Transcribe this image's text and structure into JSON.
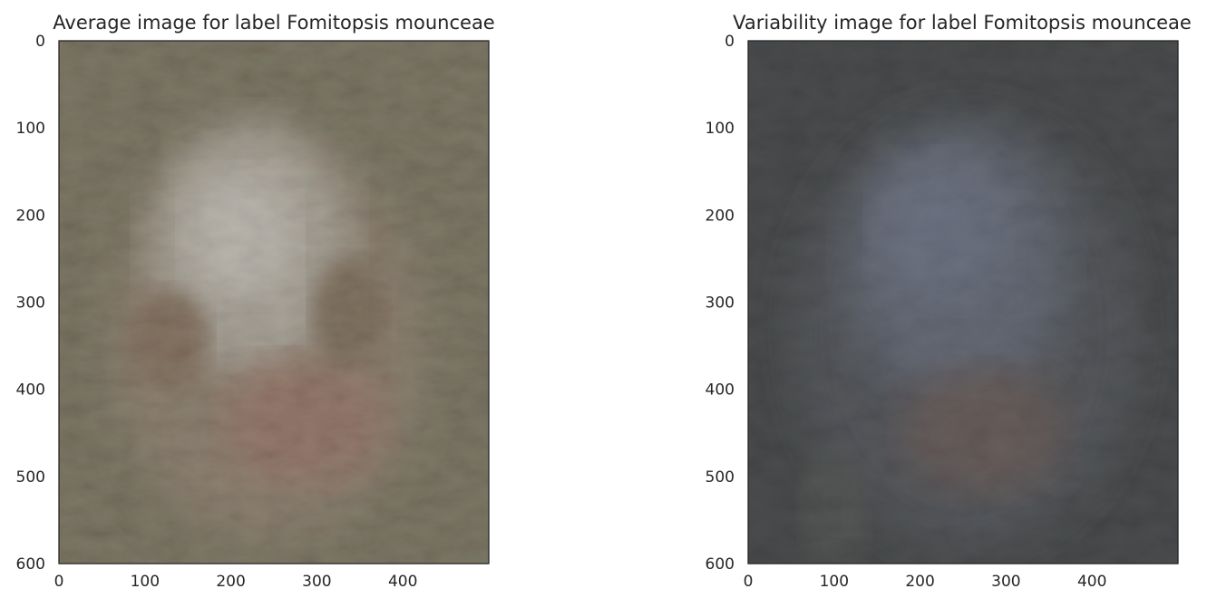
{
  "chart_data": [
    {
      "type": "heatmap",
      "title": "Average image for label Fomitopsis mounceae",
      "xlabel": "",
      "ylabel": "",
      "xlim": [
        0,
        500
      ],
      "ylim": [
        600,
        0
      ],
      "xticks": [
        0,
        100,
        200,
        300,
        400
      ],
      "yticks": [
        0,
        100,
        200,
        300,
        400,
        500,
        600
      ],
      "grid": false,
      "colors": {
        "background": "#6b6552",
        "center": "#a8a396",
        "warm": "#8a6e5c",
        "edge": "#4f4a3c"
      }
    },
    {
      "type": "heatmap",
      "title": "Variability image for label Fomitopsis mounceae",
      "xlabel": "",
      "ylabel": "",
      "xlim": [
        0,
        500
      ],
      "ylim": [
        600,
        0
      ],
      "xticks": [
        0,
        100,
        200,
        300,
        400
      ],
      "yticks": [
        0,
        100,
        200,
        300,
        400,
        500,
        600
      ],
      "grid": false,
      "colors": {
        "background": "#3b3d3e",
        "center": "#5b6170",
        "warm": "#5e5350",
        "edge": "#2c2e2e"
      }
    }
  ]
}
